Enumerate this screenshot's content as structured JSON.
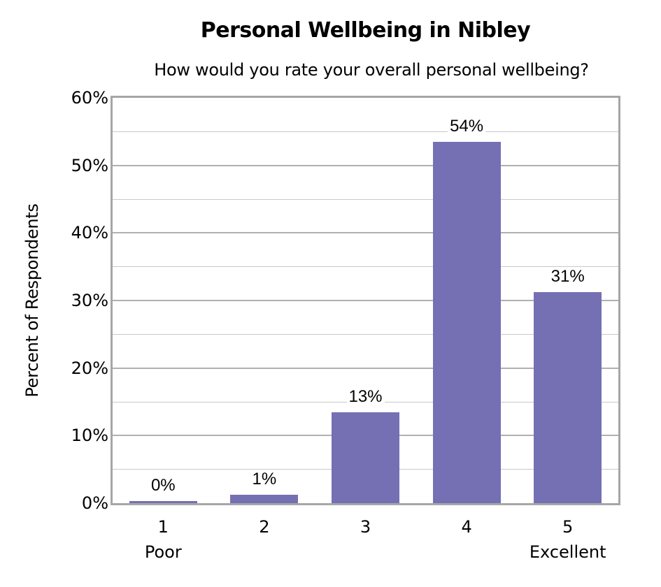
{
  "chart_data": {
    "type": "bar",
    "title": "Personal Wellbeing in Nibley",
    "subtitle": "How would you rate your overall personal wellbeing?",
    "xlabel": "",
    "ylabel": "Percent of Respondents",
    "categories": [
      "1",
      "2",
      "3",
      "4",
      "5"
    ],
    "category_sublabels": [
      "Poor",
      "",
      "",
      "",
      "Excellent"
    ],
    "values": [
      0.3,
      1.2,
      13.4,
      53.5,
      31.2
    ],
    "data_labels": [
      "0%",
      "1%",
      "13%",
      "54%",
      "31%"
    ],
    "ylim": [
      0,
      60
    ],
    "yticks": [
      "0%",
      "10%",
      "20%",
      "30%",
      "40%",
      "50%",
      "60%"
    ],
    "grid": true,
    "legend": null,
    "bar_color": "#7570B3"
  }
}
